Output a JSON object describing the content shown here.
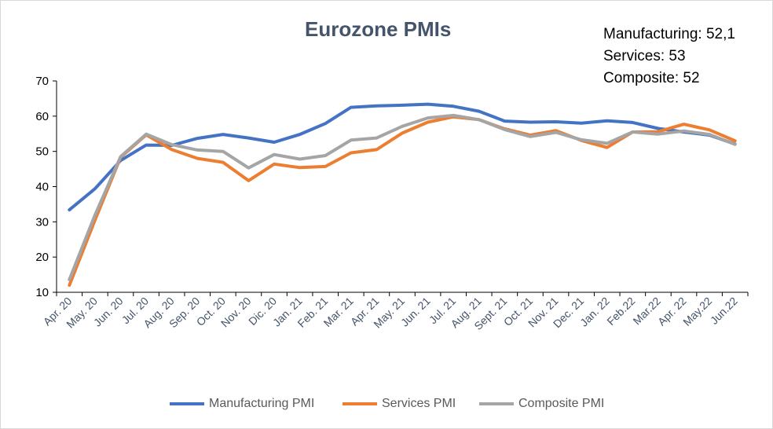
{
  "chart_data": {
    "type": "line",
    "title": "Eurozone PMIs",
    "annotations": [
      "Manufacturing: 52,1",
      "Services: 53",
      "Composite: 52"
    ],
    "categories": [
      "Apr. 20",
      "May. 20",
      "Jun. 20",
      "Jul. 20",
      "Aug. 20",
      "Sep. 20",
      "Oct. 20",
      "Nov. 20",
      "Dic. 20",
      "Jan. 21",
      "Feb. 21",
      "Mar. 21",
      "Apr. 21",
      "May. 21",
      "Jun. 21",
      "Jul. 21",
      "Aug. 21",
      "Sept. 21",
      "Oct. 21",
      "Nov. 21",
      "Dec. 21",
      "Jan. 22",
      "Feb.22",
      "Mar.22",
      "Apr. 22",
      "May.22",
      "Jun.22"
    ],
    "ylim": [
      10,
      70
    ],
    "yticks": [
      10,
      20,
      30,
      40,
      50,
      60,
      70
    ],
    "xlabel": "",
    "ylabel": "",
    "grid": false,
    "legend_position": "bottom",
    "series": [
      {
        "name": "Manufacturing PMI",
        "color": "#4472c4",
        "values": [
          33.4,
          39.4,
          47.4,
          51.8,
          51.7,
          53.7,
          54.8,
          53.8,
          52.6,
          54.8,
          57.9,
          62.5,
          62.9,
          63.1,
          63.4,
          62.8,
          61.4,
          58.6,
          58.3,
          58.4,
          58.0,
          58.7,
          58.2,
          56.5,
          55.5,
          54.6,
          52.1
        ]
      },
      {
        "name": "Services PMI",
        "color": "#ed7d31",
        "values": [
          12.0,
          30.5,
          48.3,
          54.7,
          50.5,
          48.0,
          46.9,
          41.7,
          46.4,
          45.4,
          45.7,
          49.6,
          50.5,
          55.2,
          58.3,
          59.8,
          59.0,
          56.4,
          54.6,
          55.9,
          53.1,
          51.1,
          55.5,
          55.6,
          57.7,
          56.1,
          53.0
        ]
      },
      {
        "name": "Composite PMI",
        "color": "#a5a5a5",
        "values": [
          13.6,
          31.9,
          48.5,
          54.9,
          51.9,
          50.4,
          50.0,
          45.3,
          49.1,
          47.8,
          48.8,
          53.2,
          53.8,
          57.1,
          59.5,
          60.2,
          59.0,
          56.2,
          54.2,
          55.4,
          53.3,
          52.3,
          55.5,
          54.9,
          55.8,
          54.8,
          52.0
        ]
      }
    ]
  }
}
